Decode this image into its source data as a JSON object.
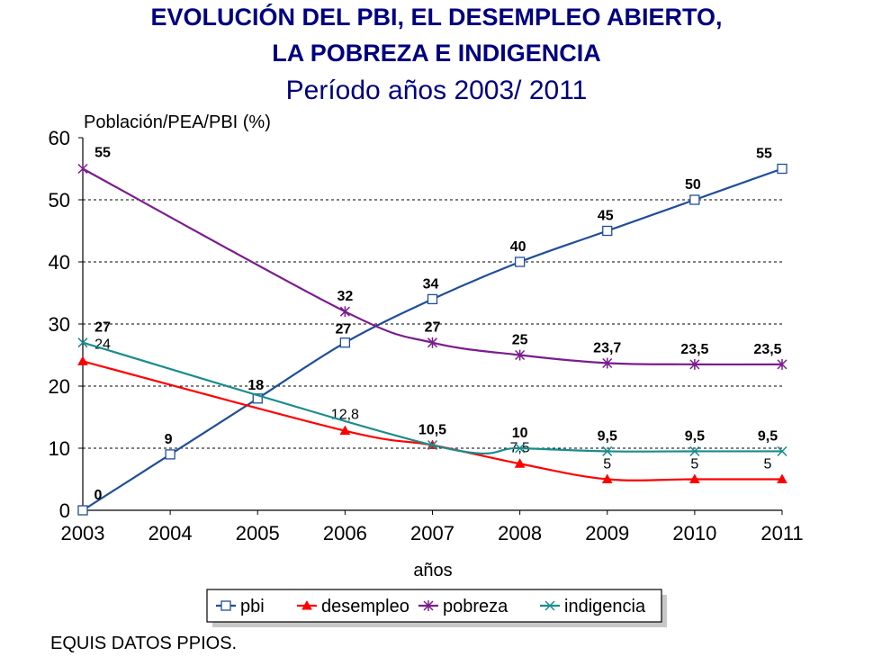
{
  "header": {
    "title_line1": "EVOLUCIÓN DEL PBI, EL DESEMPLEO ABIERTO,",
    "title_line2": "LA POBREZA E INDIGENCIA",
    "subtitle": "Período años 2003/ 2011"
  },
  "footnote": "EQUIS DATOS PPIOS.",
  "chart_data": {
    "type": "line",
    "ylabel": "Población/PEA/PBI  (%)",
    "xlabel": "años",
    "x": [
      "2003",
      "2004",
      "2005",
      "2006",
      "2007",
      "2008",
      "2009",
      "2010",
      "2011"
    ],
    "ylim": [
      0,
      60
    ],
    "yticks": [
      0,
      10,
      20,
      30,
      40,
      50,
      60
    ],
    "grid": "horizontal-dashed",
    "legend_position": "bottom",
    "series": [
      {
        "name": "pbi",
        "color": "#1F4E99",
        "marker": "square",
        "values": [
          0,
          9,
          18,
          27,
          34,
          40,
          45,
          50,
          55
        ],
        "labels": [
          "0",
          "9",
          "18",
          "27",
          "34",
          "40",
          "45",
          "50",
          "55"
        ]
      },
      {
        "name": "desempleo",
        "color": "#FF0000",
        "marker": "triangle",
        "values": [
          24,
          null,
          null,
          12.8,
          10.5,
          7.5,
          5,
          5,
          5
        ],
        "labels": [
          "24",
          "",
          "",
          "12,8",
          "",
          "7,5",
          "5",
          "5",
          "5"
        ]
      },
      {
        "name": "pobreza",
        "color": "#7B1C8E",
        "marker": "star",
        "values": [
          55,
          null,
          null,
          32,
          27,
          25,
          23.7,
          23.5,
          23.5
        ],
        "labels": [
          "55",
          "",
          "",
          "32",
          "27",
          "25",
          "23,7",
          "23,5",
          "23,5"
        ]
      },
      {
        "name": "indigencia",
        "color": "#1A8C8C",
        "marker": "x",
        "values": [
          27,
          null,
          null,
          null,
          10.5,
          10,
          9.5,
          9.5,
          9.5
        ],
        "labels": [
          "27",
          "",
          "",
          "",
          "10,5",
          "10",
          "9,5",
          "9,5",
          "9,5"
        ]
      }
    ]
  }
}
